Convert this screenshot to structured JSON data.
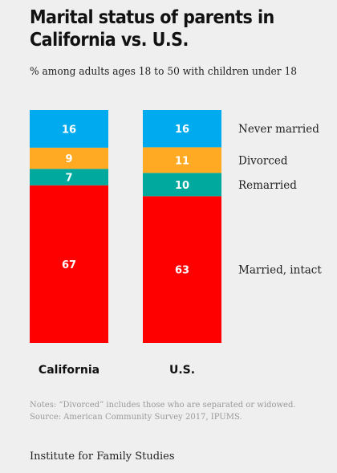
{
  "chart_data": {
    "type": "bar",
    "stacked": true,
    "title": "Marital status of parents in California vs. U.S.",
    "subtitle": "% among adults ages 18 to 50 with children under 18",
    "categories": [
      "California",
      "U.S."
    ],
    "series": [
      {
        "name": "Married, intact",
        "values": [
          67,
          63
        ],
        "color": "#ff0000"
      },
      {
        "name": "Remarried",
        "values": [
          7,
          10
        ],
        "color": "#00a99d"
      },
      {
        "name": "Divorced",
        "values": [
          9,
          11
        ],
        "color": "#ffaa22"
      },
      {
        "name": "Never married",
        "values": [
          16,
          16
        ],
        "color": "#00aaee"
      }
    ],
    "ylim": [
      0,
      100
    ],
    "grid": false,
    "legend": "right",
    "notes": [
      "Notes: “Divorced” includes those who are separated or widowed.",
      "Source: American Community Survey 2017, IPUMS."
    ]
  },
  "footer": "Institute for Family Studies"
}
